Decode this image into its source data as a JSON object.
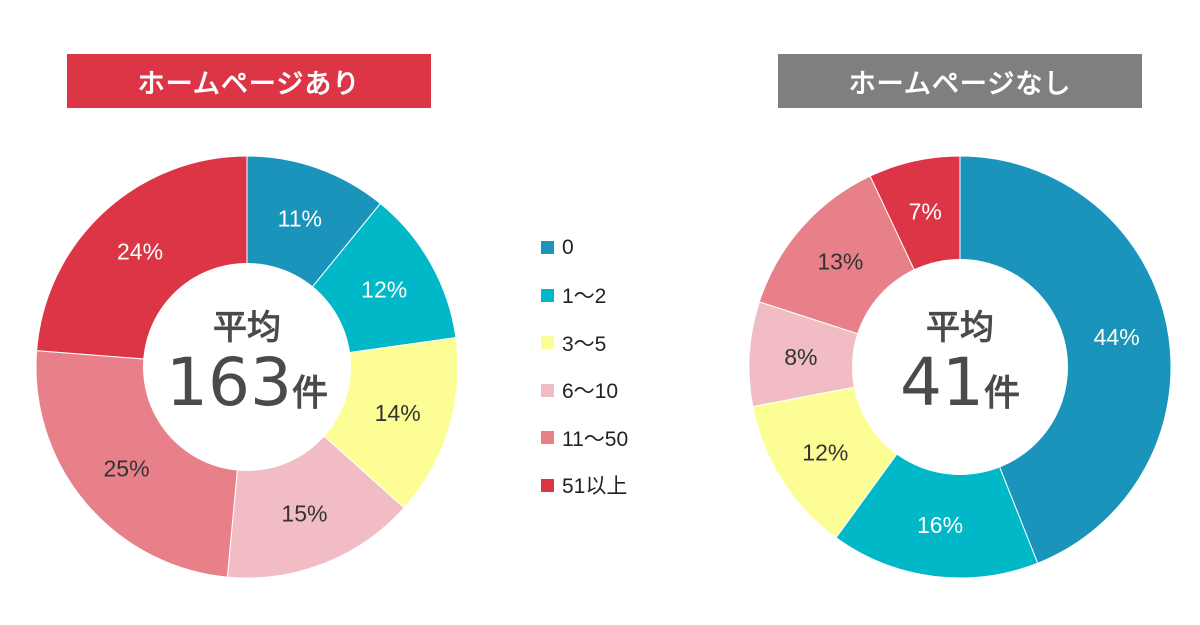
{
  "chart_data": [
    {
      "type": "pie",
      "donut": true,
      "title": "ホームページあり",
      "title_bg": "#dc3545",
      "center_label": {
        "line1": "平均",
        "value": "163",
        "unit": "件"
      },
      "categories": [
        "0",
        "1〜2",
        "3〜5",
        "6〜10",
        "11〜50",
        "51以上"
      ],
      "values": [
        11,
        12,
        14,
        15,
        25,
        24
      ],
      "labels": [
        "11%",
        "12%",
        "14%",
        "15%",
        "25%",
        "24%"
      ]
    },
    {
      "type": "pie",
      "donut": true,
      "title": "ホームページなし",
      "title_bg": "#7f7f7f",
      "center_label": {
        "line1": "平均",
        "value": "41",
        "unit": "件"
      },
      "categories": [
        "0",
        "1〜2",
        "3〜5",
        "6〜10",
        "11〜50",
        "51以上"
      ],
      "values": [
        44,
        16,
        12,
        8,
        13,
        7
      ],
      "labels": [
        "44%",
        "16%",
        "12%",
        "8%",
        "13%",
        "7%"
      ]
    }
  ],
  "legend": {
    "placement": "center",
    "items": [
      "0",
      "1〜2",
      "3〜5",
      "6〜10",
      "11〜50",
      "51以上"
    ]
  },
  "colors": [
    "#1a94bb",
    "#00b8c8",
    "#fdfd96",
    "#f2bcc4",
    "#e8808a",
    "#dc3545"
  ],
  "label_colors": [
    "#ffffff",
    "#ffffff",
    "#333333",
    "#333333",
    "#333333",
    "#ffffff"
  ]
}
